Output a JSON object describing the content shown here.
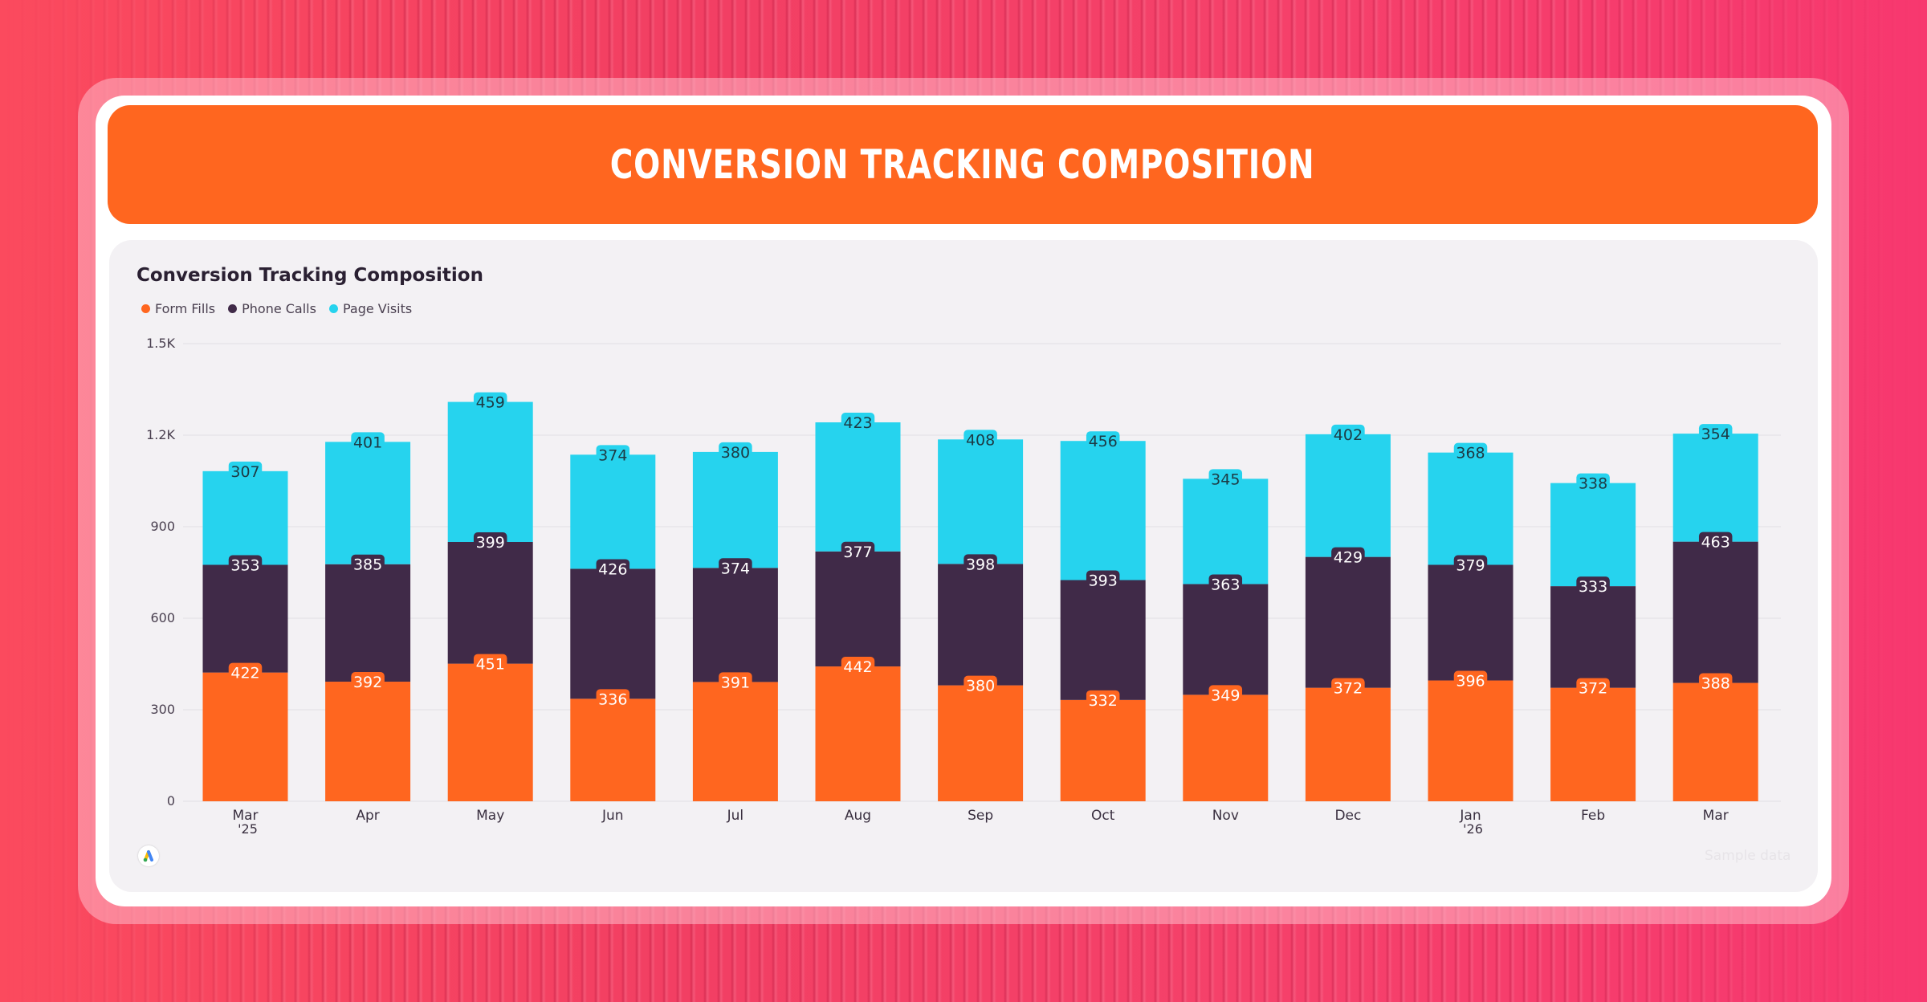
{
  "banner": {
    "title": "Conversion Tracking Composition"
  },
  "sample_note": "Sample data",
  "colors": {
    "form_fills": "#ff661f",
    "phone_calls": "#402a48",
    "page_visits": "#26d3ee",
    "accent": "#ff661f"
  },
  "icons": {
    "logo": "google-ads-logo-icon"
  },
  "chart_data": {
    "type": "bar",
    "stacked": true,
    "title": "Conversion Tracking Composition",
    "xlabel": "",
    "ylabel": "",
    "ylim": [
      0,
      1500
    ],
    "yticks": [
      0,
      300,
      600,
      900,
      1200,
      1500
    ],
    "ytick_labels": [
      "0",
      "300",
      "600",
      "900",
      "1.2K",
      "1.5K"
    ],
    "grid": true,
    "legend_position": "top-left",
    "categories": [
      "Mar",
      "Apr",
      "May",
      "Jun",
      "Jul",
      "Aug",
      "Sep",
      "Oct",
      "Nov",
      "Dec",
      "Jan",
      "Feb",
      "Mar"
    ],
    "category_sublabels": [
      "'25",
      "",
      "",
      "",
      "",
      "",
      "",
      "",
      "",
      "",
      "'26",
      "",
      ""
    ],
    "series": [
      {
        "name": "Form Fills",
        "color": "#ff661f",
        "values": [
          422,
          392,
          451,
          336,
          391,
          442,
          380,
          332,
          349,
          372,
          396,
          372,
          388
        ]
      },
      {
        "name": "Phone Calls",
        "color": "#402a48",
        "values": [
          353,
          385,
          399,
          426,
          374,
          377,
          398,
          393,
          363,
          429,
          379,
          333,
          463
        ]
      },
      {
        "name": "Page Visits",
        "color": "#26d3ee",
        "values": [
          307,
          401,
          459,
          374,
          380,
          423,
          408,
          456,
          345,
          402,
          368,
          338,
          354
        ]
      }
    ]
  }
}
